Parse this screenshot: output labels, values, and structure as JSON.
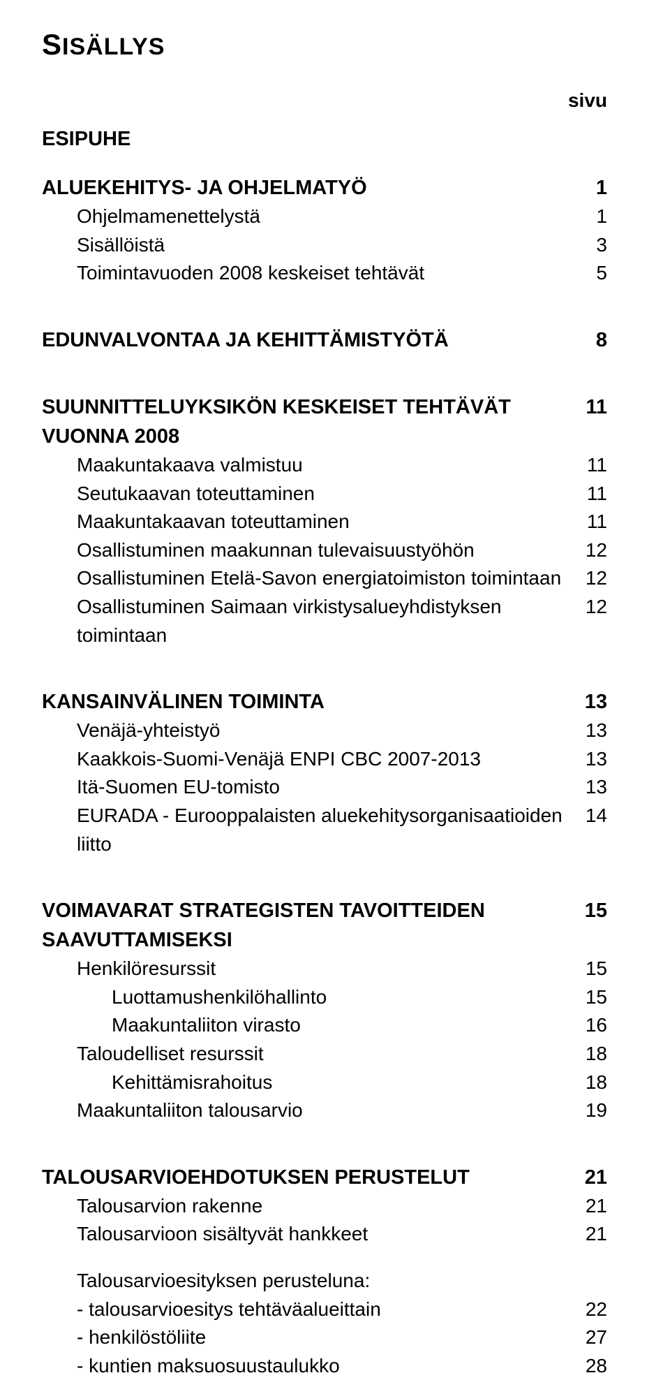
{
  "colors": {
    "text": "#000000",
    "background": "#ffffff"
  },
  "typography": {
    "body_fontsize_pt": 21,
    "heading_fontsize_pt": 22,
    "title_fontsize_pt": 32
  },
  "title_first": "S",
  "title_rest": "ISÄLLYS",
  "page_label": "sivu",
  "toc": [
    {
      "type": "heading",
      "label": "ESIPUHE"
    },
    {
      "type": "row",
      "label": "ALUEKEHITYS- JA OHJELMATYÖ",
      "page": "1",
      "bold": true
    },
    {
      "type": "row",
      "label": "Ohjelmamenettelystä",
      "page": "1",
      "indent": 1
    },
    {
      "type": "row",
      "label": "Sisällöistä",
      "page": "3",
      "indent": 1
    },
    {
      "type": "row",
      "label": "Toimintavuoden 2008 keskeiset tehtävät",
      "page": "5",
      "indent": 1
    },
    {
      "type": "gap"
    },
    {
      "type": "row",
      "label": "EDUNVALVONTAA JA KEHITTÄMISTYÖTÄ",
      "page": "8",
      "bold": true
    },
    {
      "type": "gap"
    },
    {
      "type": "row",
      "label": "SUUNNITTELUYKSIKÖN KESKEISET TEHTÄVÄT VUONNA 2008",
      "page": "11",
      "bold": true
    },
    {
      "type": "row",
      "label": "Maakuntakaava valmistuu",
      "page": "11",
      "indent": 1
    },
    {
      "type": "row",
      "label": "Seutukaavan toteuttaminen",
      "page": "11",
      "indent": 1
    },
    {
      "type": "row",
      "label": "Maakuntakaavan toteuttaminen",
      "page": "11",
      "indent": 1
    },
    {
      "type": "row",
      "label": "Osallistuminen maakunnan tulevaisuustyöhön",
      "page": "12",
      "indent": 1
    },
    {
      "type": "row",
      "label": "Osallistuminen Etelä-Savon energiatoimiston toimintaan",
      "page": "12",
      "indent": 1
    },
    {
      "type": "row",
      "label": "Osallistuminen Saimaan virkistysalueyhdistyksen toimintaan",
      "page": "12",
      "indent": 1
    },
    {
      "type": "gap"
    },
    {
      "type": "row",
      "label": "KANSAINVÄLINEN TOIMINTA",
      "page": "13",
      "bold": true
    },
    {
      "type": "row",
      "label": "Venäjä-yhteistyö",
      "page": "13",
      "indent": 1
    },
    {
      "type": "row",
      "label": "Kaakkois-Suomi-Venäjä ENPI CBC 2007-2013",
      "page": "13",
      "indent": 1
    },
    {
      "type": "row",
      "label": "Itä-Suomen EU-tomisto",
      "page": "13",
      "indent": 1
    },
    {
      "type": "row",
      "label": "EURADA - Eurooppalaisten aluekehitysorganisaatioiden liitto",
      "page": "14",
      "indent": 1
    },
    {
      "type": "gap"
    },
    {
      "type": "row",
      "label": "VOIMAVARAT STRATEGISTEN TAVOITTEIDEN SAAVUTTAMISEKSI",
      "page": "15",
      "bold": true
    },
    {
      "type": "row",
      "label": "Henkilöresurssit",
      "page": "15",
      "indent": 1
    },
    {
      "type": "row",
      "label": "Luottamushenkilöhallinto",
      "page": "15",
      "indent": 2
    },
    {
      "type": "row",
      "label": "Maakuntaliiton virasto",
      "page": "16",
      "indent": 2
    },
    {
      "type": "row",
      "label": "Taloudelliset resurssit",
      "page": "18",
      "indent": 1
    },
    {
      "type": "row",
      "label": "Kehittämisrahoitus",
      "page": "18",
      "indent": 2
    },
    {
      "type": "row",
      "label": "Maakuntaliiton talousarvio",
      "page": "19",
      "indent": 1
    },
    {
      "type": "gap"
    },
    {
      "type": "row",
      "label": "TALOUSARVIOEHDOTUKSEN PERUSTELUT",
      "page": "21",
      "bold": true
    },
    {
      "type": "row",
      "label": "Talousarvion rakenne",
      "page": "21",
      "indent": 1
    },
    {
      "type": "row",
      "label": "Talousarvioon sisältyvät hankkeet",
      "page": "21",
      "indent": 1
    },
    {
      "type": "gap"
    },
    {
      "type": "row",
      "label": "Talousarvioesityksen perusteluna:",
      "page": "",
      "indent": 1
    },
    {
      "type": "row",
      "label": "- talousarvioesitys tehtäväalueittain",
      "page": "22",
      "indent": 1
    },
    {
      "type": "row",
      "label": "- henkilöstöliite",
      "page": "27",
      "indent": 1
    },
    {
      "type": "row",
      "label": "- kuntien maksuosuustaulukko",
      "page": "28",
      "indent": 1
    }
  ]
}
